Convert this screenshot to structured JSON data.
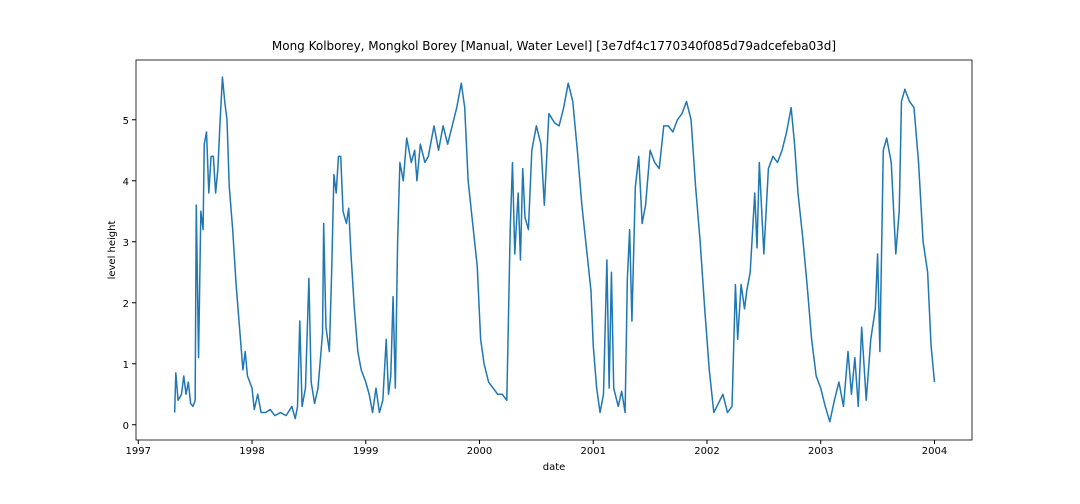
{
  "chart_data": {
    "type": "line",
    "title": "Mong Kolborey, Mongkol Borey [Manual, Water Level] [3e7df4c1770340f085d79adcefeba03d]",
    "xlabel": "date",
    "ylabel": "level height",
    "color": "#1f77b4",
    "x": [
      1997.32,
      1997.33,
      1997.35,
      1997.38,
      1997.4,
      1997.42,
      1997.44,
      1997.46,
      1997.48,
      1997.5,
      1997.51,
      1997.53,
      1997.55,
      1997.57,
      1997.58,
      1997.6,
      1997.62,
      1997.64,
      1997.66,
      1997.68,
      1997.7,
      1997.72,
      1997.74,
      1997.76,
      1997.78,
      1997.8,
      1997.83,
      1997.86,
      1997.89,
      1997.92,
      1997.94,
      1997.96,
      1998.0,
      1998.02,
      1998.05,
      1998.08,
      1998.12,
      1998.16,
      1998.2,
      1998.25,
      1998.3,
      1998.35,
      1998.38,
      1998.4,
      1998.42,
      1998.44,
      1998.47,
      1998.5,
      1998.52,
      1998.55,
      1998.58,
      1998.62,
      1998.63,
      1998.65,
      1998.68,
      1998.7,
      1998.72,
      1998.74,
      1998.76,
      1998.78,
      1998.8,
      1998.83,
      1998.85,
      1998.87,
      1998.9,
      1998.93,
      1998.96,
      1999.0,
      1999.03,
      1999.06,
      1999.09,
      1999.12,
      1999.15,
      1999.18,
      1999.2,
      1999.22,
      1999.24,
      1999.26,
      1999.28,
      1999.3,
      1999.33,
      1999.36,
      1999.4,
      1999.43,
      1999.45,
      1999.48,
      1999.52,
      1999.55,
      1999.6,
      1999.64,
      1999.68,
      1999.72,
      1999.76,
      1999.8,
      1999.84,
      1999.87,
      1999.9,
      1999.94,
      1999.98,
      2000.01,
      2000.04,
      2000.08,
      2000.12,
      2000.16,
      2000.2,
      2000.24,
      2000.27,
      2000.29,
      2000.31,
      2000.34,
      2000.36,
      2000.38,
      2000.4,
      2000.43,
      2000.46,
      2000.5,
      2000.54,
      2000.57,
      2000.61,
      2000.66,
      2000.7,
      2000.74,
      2000.78,
      2000.82,
      2000.86,
      2000.9,
      2000.94,
      2000.98,
      2001.0,
      2001.03,
      2001.06,
      2001.09,
      2001.12,
      2001.14,
      2001.16,
      2001.18,
      2001.22,
      2001.25,
      2001.28,
      2001.3,
      2001.32,
      2001.34,
      2001.37,
      2001.4,
      2001.43,
      2001.46,
      2001.5,
      2001.54,
      2001.58,
      2001.62,
      2001.66,
      2001.7,
      2001.74,
      2001.78,
      2001.82,
      2001.86,
      2001.9,
      2001.94,
      2001.98,
      2002.02,
      2002.06,
      2002.1,
      2002.14,
      2002.18,
      2002.22,
      2002.25,
      2002.27,
      2002.3,
      2002.33,
      2002.35,
      2002.38,
      2002.42,
      2002.44,
      2002.46,
      2002.5,
      2002.54,
      2002.58,
      2002.62,
      2002.66,
      2002.7,
      2002.74,
      2002.77,
      2002.8,
      2002.84,
      2002.88,
      2002.92,
      2002.96,
      2003.0,
      2003.04,
      2003.08,
      2003.12,
      2003.16,
      2003.2,
      2003.24,
      2003.27,
      2003.3,
      2003.33,
      2003.36,
      2003.4,
      2003.44,
      2003.48,
      2003.5,
      2003.52,
      2003.55,
      2003.58,
      2003.62,
      2003.66,
      2003.69,
      2003.71,
      2003.74,
      2003.78,
      2003.82,
      2003.86,
      2003.9,
      2003.94,
      2003.97,
      2004.0
    ],
    "values": [
      0.2,
      0.85,
      0.4,
      0.5,
      0.8,
      0.5,
      0.7,
      0.35,
      0.3,
      0.4,
      3.6,
      1.1,
      3.5,
      3.2,
      4.6,
      4.8,
      3.8,
      4.4,
      4.4,
      3.8,
      4.2,
      5.0,
      5.7,
      5.3,
      5.0,
      3.9,
      3.2,
      2.3,
      1.6,
      0.9,
      1.2,
      0.8,
      0.6,
      0.25,
      0.5,
      0.2,
      0.2,
      0.25,
      0.15,
      0.2,
      0.15,
      0.3,
      0.1,
      0.3,
      1.7,
      0.3,
      0.6,
      2.4,
      0.7,
      0.35,
      0.6,
      1.5,
      3.3,
      1.6,
      1.2,
      2.5,
      4.1,
      3.8,
      4.4,
      4.4,
      3.5,
      3.3,
      3.55,
      2.8,
      1.9,
      1.2,
      0.9,
      0.7,
      0.5,
      0.2,
      0.6,
      0.2,
      0.4,
      1.4,
      0.5,
      0.8,
      2.1,
      0.6,
      3.0,
      4.3,
      4.0,
      4.7,
      4.3,
      4.5,
      4.0,
      4.6,
      4.3,
      4.4,
      4.9,
      4.5,
      4.9,
      4.6,
      4.9,
      5.2,
      5.6,
      5.2,
      4.0,
      3.3,
      2.6,
      1.4,
      1.0,
      0.7,
      0.6,
      0.5,
      0.5,
      0.4,
      3.2,
      4.3,
      2.8,
      3.8,
      2.7,
      4.2,
      3.4,
      3.2,
      4.5,
      4.9,
      4.6,
      3.6,
      5.1,
      4.95,
      4.9,
      5.2,
      5.6,
      5.3,
      4.5,
      3.6,
      2.9,
      2.2,
      1.3,
      0.6,
      0.2,
      0.5,
      2.7,
      0.6,
      2.5,
      0.6,
      0.3,
      0.55,
      0.2,
      2.4,
      3.2,
      1.7,
      3.9,
      4.4,
      3.3,
      3.6,
      4.5,
      4.3,
      4.2,
      4.9,
      4.9,
      4.8,
      5.0,
      5.1,
      5.3,
      5.0,
      3.9,
      3.0,
      1.9,
      0.9,
      0.2,
      0.35,
      0.5,
      0.2,
      0.3,
      2.3,
      1.4,
      2.3,
      1.9,
      2.2,
      2.5,
      3.8,
      2.9,
      4.3,
      2.8,
      4.2,
      4.4,
      4.3,
      4.5,
      4.8,
      5.2,
      4.6,
      3.8,
      3.1,
      2.3,
      1.4,
      0.8,
      0.6,
      0.3,
      0.05,
      0.4,
      0.7,
      0.3,
      1.2,
      0.5,
      1.1,
      0.3,
      1.6,
      0.4,
      1.4,
      1.9,
      2.8,
      1.2,
      4.5,
      4.7,
      4.3,
      2.8,
      3.5,
      5.3,
      5.5,
      5.3,
      5.2,
      4.3,
      3.0,
      2.5,
      1.3,
      0.7
    ],
    "xlim": [
      1996.98,
      2004.33
    ],
    "xticks": [
      1997,
      1998,
      1999,
      2000,
      2001,
      2002,
      2003,
      2004
    ],
    "ylim": [
      -0.25,
      5.98
    ],
    "yticks": [
      0,
      1,
      2,
      3,
      4,
      5
    ]
  }
}
